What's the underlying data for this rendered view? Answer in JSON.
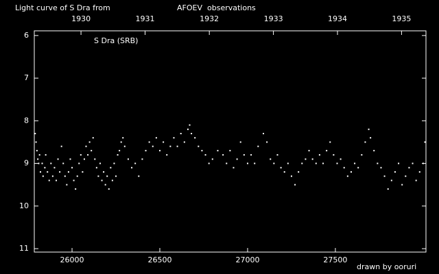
{
  "chart_data": {
    "type": "scatter",
    "title": "Light curve of S Dra from",
    "title_source": "AFOEV",
    "title_end": "observations",
    "subtitle": "S Dra (SRB)",
    "credit": "drawn by ooruri",
    "color": "#ffffff",
    "source_color": "#ffff00",
    "credit_color": "#00ffff",
    "xlim": [
      25785,
      28016
    ],
    "ylim": [
      11.08,
      5.89
    ],
    "xticks": [
      26000,
      26500,
      27000,
      27500
    ],
    "yticks": [
      6,
      7,
      8,
      9,
      10,
      11
    ],
    "x2ticks": [
      {
        "value": 26051,
        "label": "1930"
      },
      {
        "value": 26416,
        "label": "1931"
      },
      {
        "value": 26782,
        "label": "1932"
      },
      {
        "value": 27147,
        "label": "1933"
      },
      {
        "value": 27512,
        "label": "1934"
      },
      {
        "value": 27877,
        "label": "1935"
      }
    ],
    "x": [
      25790,
      25795,
      25800,
      25805,
      25810,
      25815,
      25820,
      25830,
      25835,
      25845,
      25850,
      25860,
      25870,
      25880,
      25890,
      25900,
      25910,
      25920,
      25930,
      25940,
      25950,
      25960,
      25970,
      25980,
      25990,
      26000,
      26010,
      26020,
      26030,
      26040,
      26050,
      26060,
      26070,
      26080,
      26090,
      26100,
      26110,
      26120,
      26130,
      26140,
      26150,
      26160,
      26170,
      26180,
      26190,
      26200,
      26210,
      26220,
      26230,
      26240,
      26250,
      26260,
      26270,
      26280,
      26290,
      26300,
      26320,
      26340,
      26360,
      26380,
      26400,
      26420,
      26440,
      26460,
      26480,
      26500,
      26520,
      26540,
      26560,
      26580,
      26600,
      26620,
      26640,
      26660,
      26670,
      26680,
      26700,
      26720,
      26740,
      26760,
      26780,
      26800,
      26830,
      26860,
      26880,
      26900,
      26920,
      26940,
      26960,
      26980,
      27000,
      27020,
      27040,
      27060,
      27090,
      27110,
      27130,
      27150,
      27170,
      27190,
      27210,
      27230,
      27250,
      27270,
      27290,
      27310,
      27330,
      27350,
      27370,
      27390,
      27410,
      27430,
      27450,
      27470,
      27490,
      27510,
      27530,
      27550,
      27570,
      27590,
      27610,
      27630,
      27650,
      27670,
      27690,
      27700,
      27720,
      27740,
      27760,
      27780,
      27800,
      27820,
      27840,
      27860,
      27880,
      27900,
      27920,
      27940,
      27960,
      27980,
      28000,
      28010
    ],
    "values": [
      8.3,
      8.5,
      8.7,
      8.9,
      9.0,
      8.8,
      9.2,
      9.0,
      9.3,
      9.1,
      8.8,
      9.2,
      9.4,
      9.0,
      9.3,
      9.1,
      9.4,
      8.9,
      9.2,
      8.6,
      9.0,
      9.3,
      9.5,
      9.2,
      8.9,
      9.1,
      9.4,
      9.6,
      9.3,
      9.0,
      8.8,
      9.2,
      8.9,
      8.6,
      8.8,
      8.5,
      8.7,
      8.4,
      8.9,
      9.1,
      9.3,
      9.0,
      9.4,
      9.2,
      9.5,
      9.3,
      9.6,
      9.1,
      9.4,
      9.0,
      9.3,
      8.8,
      8.7,
      8.5,
      8.4,
      8.6,
      8.9,
      9.1,
      9.0,
      9.3,
      8.9,
      8.7,
      8.5,
      8.6,
      8.4,
      8.7,
      8.5,
      8.8,
      8.6,
      8.4,
      8.6,
      8.3,
      8.5,
      8.2,
      8.1,
      8.3,
      8.4,
      8.6,
      8.7,
      8.8,
      9.0,
      8.9,
      8.7,
      8.8,
      9.0,
      8.7,
      9.1,
      8.9,
      8.5,
      8.8,
      9.0,
      8.8,
      9.0,
      8.6,
      8.3,
      8.5,
      8.9,
      9.0,
      8.8,
      9.1,
      9.2,
      9.0,
      9.3,
      9.5,
      9.2,
      9.0,
      8.9,
      8.7,
      8.9,
      9.0,
      8.8,
      9.0,
      8.7,
      8.5,
      8.8,
      9.0,
      8.9,
      9.1,
      9.3,
      9.2,
      9.0,
      9.1,
      8.8,
      8.5,
      8.2,
      8.4,
      8.7,
      9.0,
      9.1,
      9.3,
      9.6,
      9.4,
      9.2,
      9.0,
      9.5,
      9.3,
      9.1,
      9.0,
      9.4,
      9.2,
      9.0,
      8.5
    ]
  }
}
